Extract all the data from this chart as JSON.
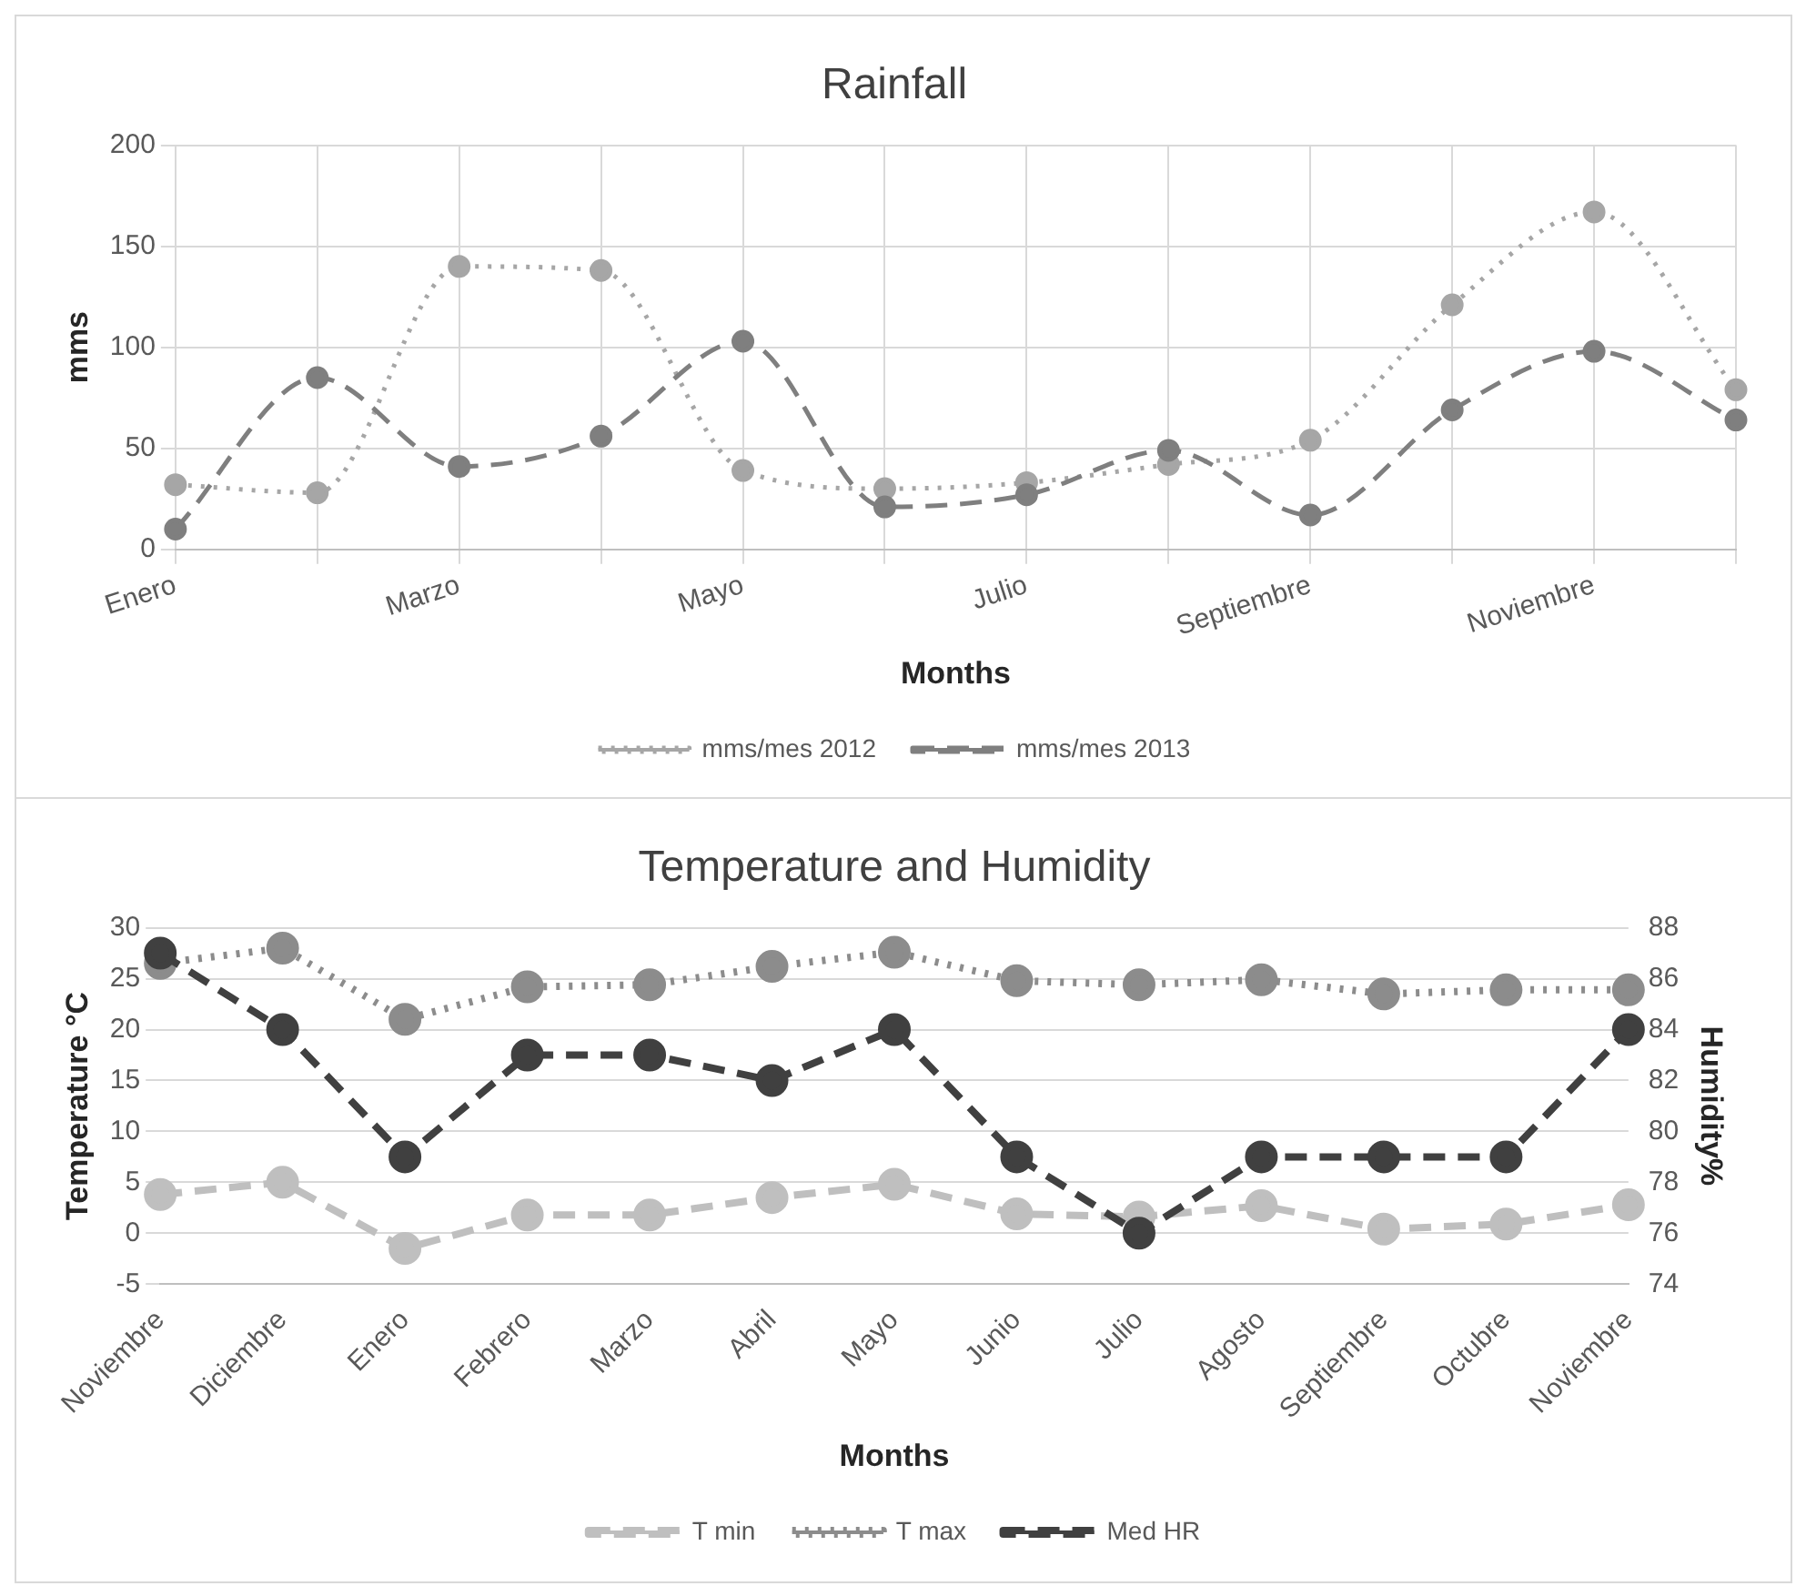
{
  "chart_data": [
    {
      "type": "line",
      "title": "Rainfall",
      "xlabel": "Months",
      "ylabel": "mms",
      "categories": [
        "Enero",
        null,
        "Marzo",
        null,
        "Mayo",
        null,
        "Julio",
        null,
        "Septiembre",
        null,
        "Noviembre",
        null
      ],
      "series": [
        {
          "name": "mms/mes 2012",
          "color": "#a6a6a6",
          "line_style": "dotted",
          "values": [
            32,
            28,
            140,
            138,
            39,
            30,
            33,
            42,
            54,
            121,
            167,
            79
          ]
        },
        {
          "name": "mms/mes 2013",
          "color": "#7f7f7f",
          "line_style": "dashed",
          "values": [
            10,
            85,
            41,
            56,
            103,
            21,
            27,
            49,
            17,
            69,
            98,
            64
          ]
        }
      ],
      "ylim": [
        0,
        200
      ],
      "yticks": [
        0,
        50,
        100,
        150,
        200
      ],
      "grid": true,
      "legend": "bottom",
      "marker": "circle"
    },
    {
      "type": "line",
      "title": "Temperature and Humidity",
      "xlabel": "Months",
      "ylabel": "Temperature °C",
      "y2label": "Humidity%",
      "categories": [
        "Noviembre",
        "Diciembre",
        "Enero",
        "Febrero",
        "Marzo",
        "Abril",
        "Mayo",
        "Junio",
        "Julio",
        "Agosto",
        "Septiembre",
        "Octubre",
        "Noviembre"
      ],
      "series": [
        {
          "name": "T min",
          "color": "#bfbfbf",
          "line_style": "dashed",
          "values": [
            3.8,
            5,
            -1.5,
            1.8,
            1.8,
            3.5,
            4.8,
            1.9,
            1.6,
            2.7,
            0.4,
            0.9,
            2.8
          ]
        },
        {
          "name": "T max",
          "color": "#8c8c8c",
          "line_style": "dotted",
          "values": [
            26.5,
            28,
            21,
            24.2,
            24.4,
            26.2,
            27.6,
            24.8,
            24.4,
            24.9,
            23.5,
            23.9,
            23.9
          ]
        },
        {
          "name": "Med HR",
          "color": "#404040",
          "line_style": "dashed",
          "axis": "y2",
          "values": [
            87,
            84,
            79,
            83,
            83,
            82,
            84,
            79,
            76,
            79,
            79,
            79,
            84
          ]
        }
      ],
      "ylim": [
        -5,
        30
      ],
      "yticks": [
        -5,
        0,
        5,
        10,
        15,
        20,
        25,
        30
      ],
      "y2lim": [
        74,
        88
      ],
      "y2ticks": [
        74,
        76,
        78,
        80,
        82,
        84,
        86,
        88
      ],
      "grid": "y",
      "legend": "bottom",
      "marker": "circle"
    }
  ]
}
